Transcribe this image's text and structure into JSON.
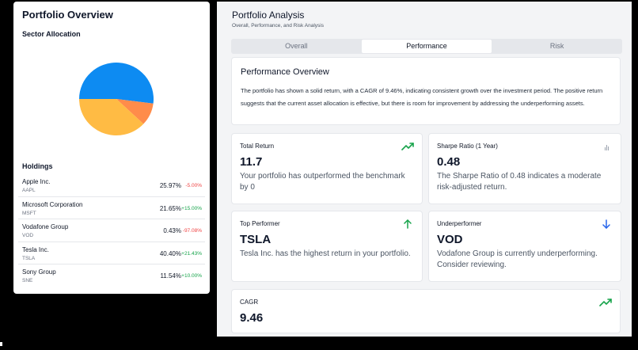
{
  "left": {
    "title": "Portfolio Overview",
    "sector_title": "Sector Allocation",
    "holdings_title": "Holdings",
    "holdings": [
      {
        "name": "Apple Inc.",
        "symbol": "AAPL",
        "pct": "25.97%",
        "change": "-5.00%",
        "dir": "neg"
      },
      {
        "name": "Microsoft Corporation",
        "symbol": "MSFT",
        "pct": "21.65%",
        "change": "+15.00%",
        "dir": "pos"
      },
      {
        "name": "Vodafone Group",
        "symbol": "VOD",
        "pct": "0.43%",
        "change": "-97.08%",
        "dir": "neg"
      },
      {
        "name": "Tesla Inc.",
        "symbol": "TSLA",
        "pct": "40.40%",
        "change": "+21.43%",
        "dir": "pos"
      },
      {
        "name": "Sony Group",
        "symbol": "SNE",
        "pct": "11.54%",
        "change": "+10.00%",
        "dir": "pos"
      }
    ]
  },
  "chart_data": {
    "type": "pie",
    "slices": [
      {
        "value": 52.0,
        "color": "#0d8bf2"
      },
      {
        "value": 10.0,
        "color": "#ff8c4a"
      },
      {
        "value": 38.0,
        "color": "#ffbb44"
      }
    ]
  },
  "right": {
    "title": "Portfolio Analysis",
    "subtitle": "Overall, Performance, and Risk Analysis",
    "tabs": [
      "Overall",
      "Performance",
      "Risk"
    ],
    "overview": {
      "heading": "Performance Overview",
      "text": "The portfolio has shown a solid return, with a CAGR of 9.46%, indicating consistent growth over the investment period. The positive return suggests that the current asset allocation is effective, but there is room for improvement by addressing the underperforming assets."
    },
    "cards": {
      "total_return": {
        "label": "Total Return",
        "value": "11.7",
        "desc": "Your portfolio has outperformed the benchmark by 0"
      },
      "sharpe": {
        "label": "Sharpe Ratio (1 Year)",
        "value": "0.48",
        "desc": "The Sharpe Ratio of 0.48 indicates a moderate risk-adjusted return."
      },
      "top": {
        "label": "Top Performer",
        "value": "TSLA",
        "desc": "Tesla Inc. has the highest return in your portfolio."
      },
      "under": {
        "label": "Underperformer",
        "value": "VOD",
        "desc": "Vodafone Group is currently underperforming. Consider reviewing."
      },
      "cagr": {
        "label": "CAGR",
        "value": "9.46"
      }
    },
    "icons": {
      "trend": "trending-up-icon",
      "bars": "bar-chart-icon",
      "up": "arrow-up-icon",
      "down": "arrow-down-icon"
    },
    "colors": {
      "green": "#16a34a",
      "blue": "#2563eb",
      "gray": "#9ca3af"
    }
  }
}
